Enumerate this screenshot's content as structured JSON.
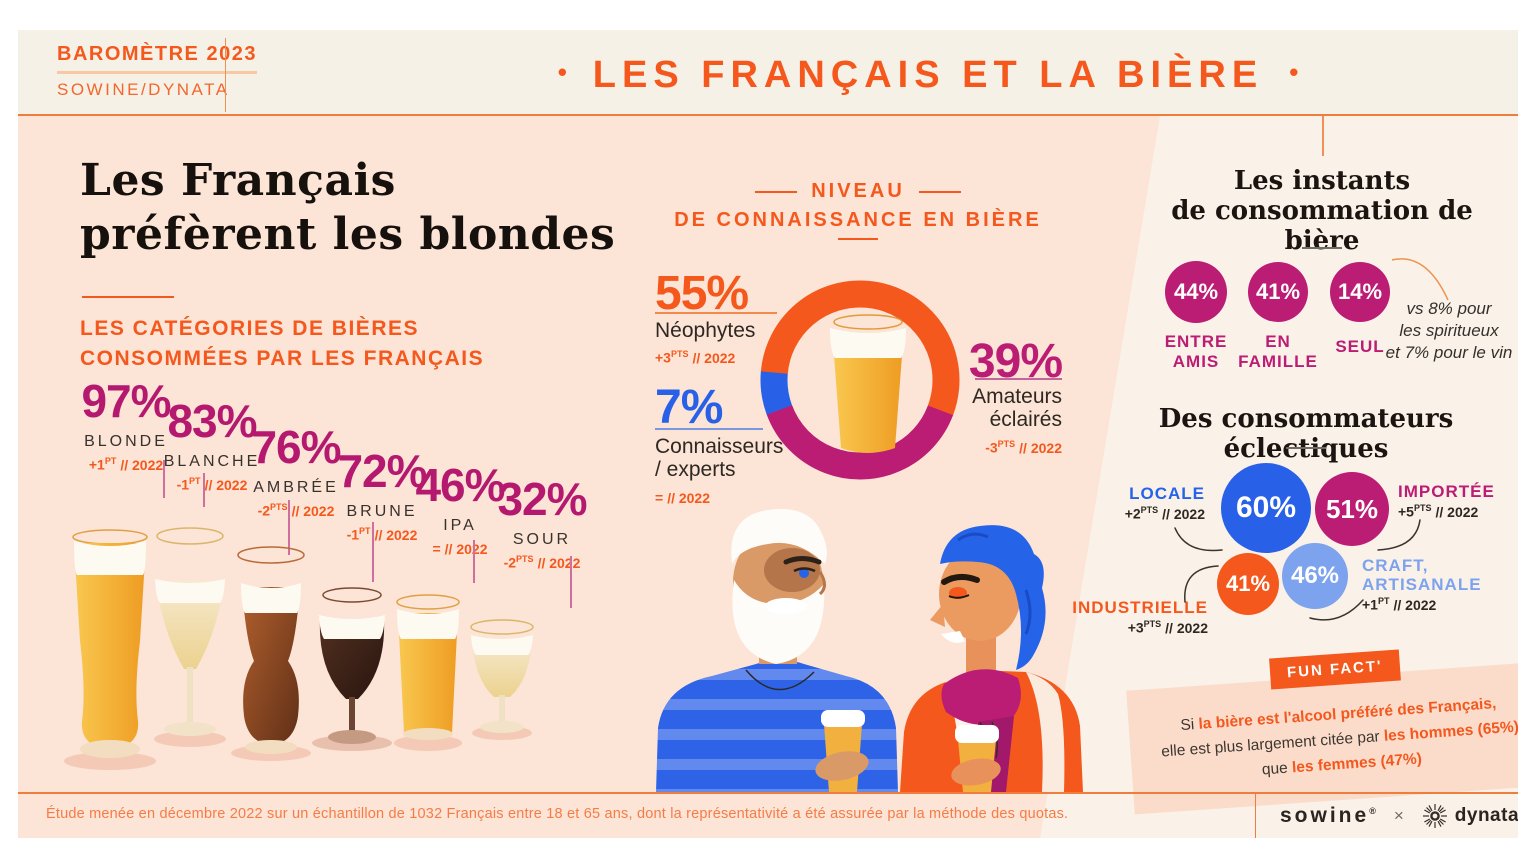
{
  "header": {
    "badge_title": "BAROMÈTRE 2023",
    "badge_subtitle": "SOWINE/DYNATA",
    "dot": "•",
    "title": "LES FRANÇAIS ET LA BIÈRE"
  },
  "left_section": {
    "heading_line1": "Les Français",
    "heading_line2": "préfèrent les blondes",
    "subtitle_line1": "LES CATÉGORIES DE BIÈRES",
    "subtitle_line2": "CONSOMMÉES PAR LES FRANÇAIS",
    "categories": [
      {
        "pct": "97%",
        "label": "BLONDE",
        "change": {
          "v": "+1",
          "u": "PT",
          "r": "// 2022"
        }
      },
      {
        "pct": "83%",
        "label": "BLANCHE",
        "change": {
          "v": "-1",
          "u": "PT",
          "r": "// 2022"
        }
      },
      {
        "pct": "76%",
        "label": "AMBRÉE",
        "change": {
          "v": "-2",
          "u": "PTS",
          "r": "// 2022"
        }
      },
      {
        "pct": "72%",
        "label": "BRUNE",
        "change": {
          "v": "-1",
          "u": "PT",
          "r": "// 2022"
        }
      },
      {
        "pct": "46%",
        "label": "IPA",
        "change": {
          "v": "=",
          "u": "",
          "r": "// 2022"
        }
      },
      {
        "pct": "32%",
        "label": "SOUR",
        "change": {
          "v": "-2",
          "u": "PTS",
          "r": "// 2022"
        }
      }
    ]
  },
  "knowledge": {
    "title_line1": "NIVEAU",
    "title_line2": "DE CONNAISSANCE EN BIÈRE",
    "neophytes": {
      "pct": "55%",
      "label1": "Néophytes",
      "label2": "",
      "change": {
        "v": "+3",
        "u": "PTS",
        "r": "// 2022"
      }
    },
    "amateurs": {
      "pct": "39%",
      "label1": "Amateurs",
      "label2": "éclairés",
      "change": {
        "v": "-3",
        "u": "PTS",
        "r": "// 2022"
      }
    },
    "connaisseurs": {
      "pct": "7%",
      "label1": "Connaisseurs",
      "label2": "/ experts",
      "change": {
        "v": "=",
        "u": "",
        "r": "// 2022"
      }
    }
  },
  "instants": {
    "title_line1": "Les instants",
    "title_line2": "de consommation de bière",
    "items": [
      {
        "pct": "44%",
        "label1": "ENTRE",
        "label2": "AMIS"
      },
      {
        "pct": "41%",
        "label1": "EN",
        "label2": "FAMILLE"
      },
      {
        "pct": "14%",
        "label1": "SEUL",
        "label2": ""
      }
    ],
    "note_line1": "vs 8% pour",
    "note_line2": "les spiritueux",
    "note_line3": "et 7% pour le vin"
  },
  "eclectic": {
    "title": "Des consommateurs éclectiques",
    "locale": {
      "pct": "60%",
      "label1": "LOCALE",
      "label2": "",
      "change": {
        "v": "+2",
        "u": "PTS",
        "r": "// 2022"
      }
    },
    "importee": {
      "pct": "51%",
      "label1": "IMPORTÉE",
      "label2": "",
      "change": {
        "v": "+5",
        "u": "PTS",
        "r": "// 2022"
      }
    },
    "craft": {
      "pct": "46%",
      "label1": "CRAFT,",
      "label2": "ARTISANALE",
      "change": {
        "v": "+1",
        "u": "PT",
        "r": "// 2022"
      }
    },
    "industrielle": {
      "pct": "41%",
      "label1": "INDUSTRIELLE",
      "label2": "",
      "change": {
        "v": "+3",
        "u": "PTS",
        "r": "// 2022"
      }
    }
  },
  "funfact": {
    "ribbon": "FUN FACT'",
    "line1_plain": "Si ",
    "line1_strong": "la bière est l'alcool préféré des Français,",
    "line2_plain": "elle est plus largement citée par ",
    "line2_strong": "les hommes (65%)",
    "line3_plain": "que ",
    "line3_strong": "les femmes (47%)"
  },
  "footer": {
    "note": "Étude menée en décembre 2022 sur un échantillon de 1032 Français entre 18 et 65 ans, dont la représentativité a été assurée par la méthode des quotas.",
    "brand1": "sowine",
    "brand1_mark": "®",
    "times": "×",
    "brand2": "dynata"
  },
  "colors": {
    "orange": "#f4581d",
    "magenta": "#bb1c74",
    "blue": "#2861e8",
    "light_blue": "#7da3ef",
    "peach": "#fce4d6",
    "cream": "#f6f1e7",
    "light_panel": "#faf1e9"
  },
  "chart_data": [
    {
      "type": "bar",
      "title": "Les catégories de bières consommées par les Français",
      "categories": [
        "Blonde",
        "Blanche",
        "Ambrée",
        "Brune",
        "IPA",
        "Sour"
      ],
      "values": [
        97,
        83,
        76,
        72,
        46,
        32
      ],
      "unit": "%",
      "changes_vs_2022": [
        "+1 pt",
        "-1 pt",
        "-2 pts",
        "-1 pt",
        "=",
        "-2 pts"
      ]
    },
    {
      "type": "pie",
      "title": "Niveau de connaissance en bière",
      "categories": [
        "Néophytes",
        "Amateurs éclairés",
        "Connaisseurs / experts"
      ],
      "values": [
        55,
        39,
        7
      ],
      "unit": "%",
      "changes_vs_2022": [
        "+3 pts",
        "-3 pts",
        "="
      ],
      "colors": [
        "#f4581d",
        "#bb1c74",
        "#2861e8"
      ],
      "start_angle": 275,
      "legend_position": "sides",
      "donut": true
    },
    {
      "type": "pie",
      "title": "Les instants de consommation de bière",
      "categories": [
        "Entre amis",
        "En famille",
        "Seul"
      ],
      "values": [
        44,
        41,
        14
      ],
      "unit": "%",
      "note": "vs 8% pour les spiritueux et 7% pour le vin"
    },
    {
      "type": "pie",
      "title": "Des consommateurs éclectiques",
      "categories": [
        "Locale",
        "Importée",
        "Craft, artisanale",
        "Industrielle"
      ],
      "values": [
        60,
        51,
        46,
        41
      ],
      "unit": "%",
      "changes_vs_2022": [
        "+2 pts",
        "+5 pts",
        "+1 pt",
        "+3 pts"
      ],
      "colors": [
        "#2861e8",
        "#bb1c74",
        "#7da3ef",
        "#f4581d"
      ]
    }
  ]
}
